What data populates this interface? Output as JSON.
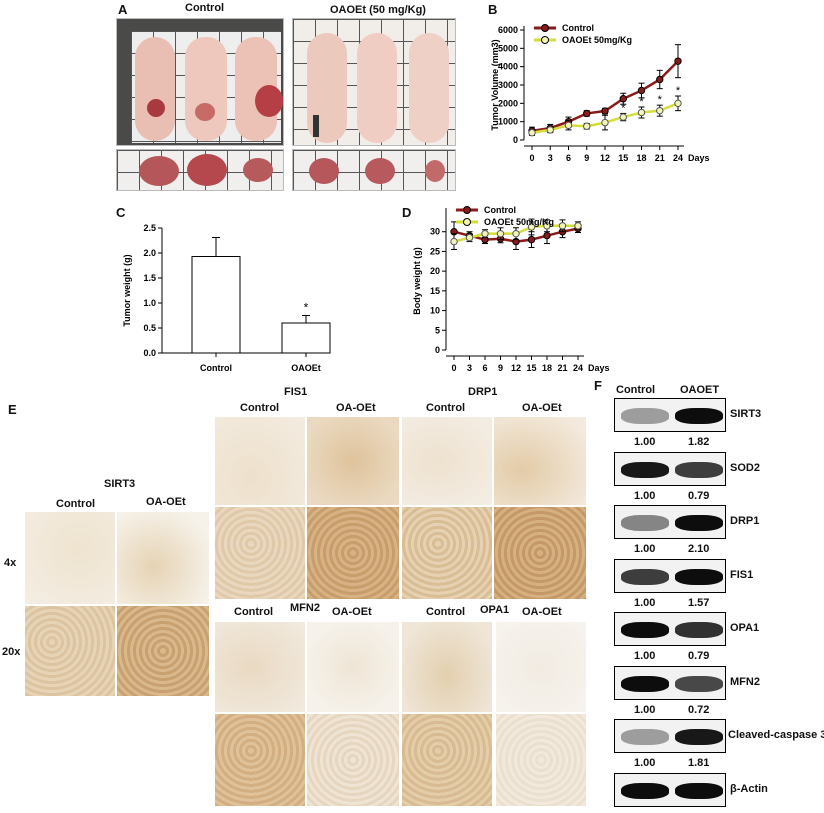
{
  "panels": {
    "A": "A",
    "B": "B",
    "C": "C",
    "D": "D",
    "E": "E",
    "F": "F"
  },
  "panel_a": {
    "control_label": "Control",
    "treatment_label": "OAOEt (50 mg/Kg)"
  },
  "chart_data": [
    {
      "panel": "B",
      "type": "line",
      "ylabel": "Tumor Volume (mm3)",
      "xlabel": "Days",
      "x": [
        0,
        3,
        6,
        9,
        12,
        15,
        18,
        21,
        24
      ],
      "ylim": [
        0,
        6000
      ],
      "yticks": [
        0,
        1000,
        2000,
        3000,
        4000,
        5000,
        6000
      ],
      "series": [
        {
          "name": "Control",
          "color": "#8b1a1a",
          "values": [
            500,
            650,
            1000,
            1450,
            1580,
            2250,
            2700,
            3300,
            4300
          ],
          "err": [
            200,
            200,
            250,
            150,
            150,
            300,
            400,
            500,
            900
          ]
        },
        {
          "name": "OAOEt  50mg/Kg",
          "color": "#d4dd3a",
          "values": [
            400,
            550,
            800,
            750,
            950,
            1250,
            1500,
            1600,
            2000
          ],
          "err": [
            150,
            150,
            250,
            150,
            400,
            200,
            300,
            300,
            400
          ]
        }
      ],
      "sig": [
        {
          "x": 15,
          "label": "*"
        },
        {
          "x": 18,
          "label": "*"
        },
        {
          "x": 21,
          "label": "*"
        },
        {
          "x": 24,
          "label": "*"
        }
      ],
      "legend": "top-left"
    },
    {
      "panel": "C",
      "type": "bar",
      "ylabel": "Tumor weight (g)",
      "categories": [
        "Control",
        "OAOEt"
      ],
      "values": [
        1.93,
        0.6
      ],
      "err": [
        0.38,
        0.15
      ],
      "ylim": [
        0,
        2.5
      ],
      "yticks": [
        "0.0",
        "0.5",
        "1.0",
        "1.5",
        "2.0",
        "2.5"
      ],
      "sig": [
        {
          "category": "OAOEt",
          "label": "*"
        }
      ]
    },
    {
      "panel": "D",
      "type": "line",
      "ylabel": "Body weight (g)",
      "xlabel": "Days",
      "x": [
        0,
        3,
        6,
        9,
        12,
        15,
        18,
        21,
        24
      ],
      "ylim": [
        0,
        35
      ],
      "yticks": [
        0,
        5,
        10,
        15,
        20,
        25,
        30
      ],
      "series": [
        {
          "name": "Control",
          "color": "#8b1a1a",
          "values": [
            30,
            29,
            28,
            28.2,
            27.5,
            28,
            29,
            30,
            30.8
          ],
          "err": [
            2.5,
            1,
            1,
            1,
            2,
            2,
            2,
            1.5,
            1
          ]
        },
        {
          "name": "OAOEt  50mg/Kg",
          "color": "#d4dd3a",
          "values": [
            27.5,
            28.5,
            29.5,
            29.5,
            29.5,
            31.2,
            31.5,
            31.5,
            31.5
          ],
          "err": [
            2,
            1,
            1,
            1.5,
            1.5,
            2,
            1.5,
            1.5,
            1
          ]
        }
      ],
      "legend": "top-left"
    }
  ],
  "panel_e": {
    "sirt3_title": "SIRT3",
    "fis1_title": "FIS1",
    "drp1_title": "DRP1",
    "mfn2_title": "MFN2",
    "opa1_title": "OPA1",
    "control": "Control",
    "oa_oet": "OA-OEt",
    "mag_4x": "4x",
    "mag_20x": "20x"
  },
  "panel_f": {
    "col_control": "Control",
    "col_oaoet": "OAOET",
    "blots": [
      {
        "name": "SIRT3",
        "control": "1.00",
        "treated": "1.82"
      },
      {
        "name": "SOD2",
        "control": "1.00",
        "treated": "0.79"
      },
      {
        "name": "DRP1",
        "control": "1.00",
        "treated": "2.10"
      },
      {
        "name": "FIS1",
        "control": "1.00",
        "treated": "1.57"
      },
      {
        "name": "OPA1",
        "control": "1.00",
        "treated": "0.79"
      },
      {
        "name": "MFN2",
        "control": "1.00",
        "treated": "0.72"
      },
      {
        "name": "Cleaved-caspase 3",
        "control": "1.00",
        "treated": "1.81"
      },
      {
        "name": "β-Actin",
        "control": "",
        "treated": ""
      }
    ]
  }
}
